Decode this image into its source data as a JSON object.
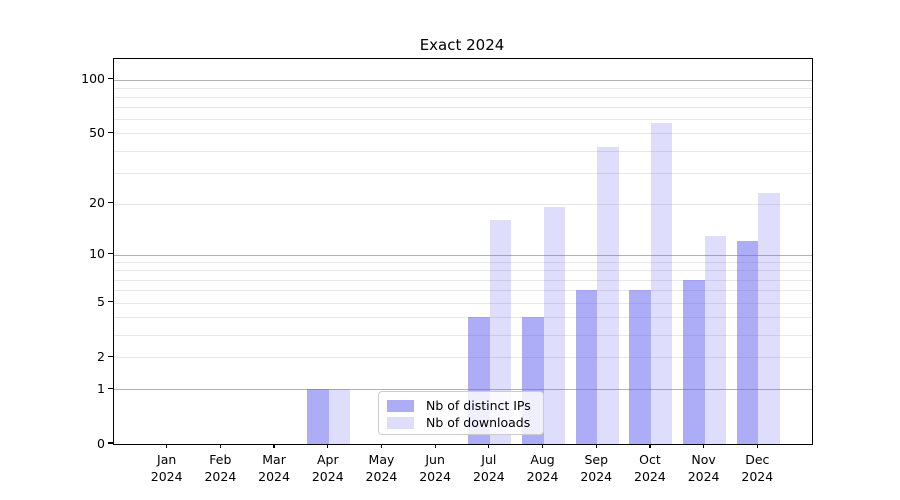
{
  "title": "Exact 2024",
  "colors": {
    "distinct_ips": "rgba(100,100,240,0.53)",
    "downloads": "rgba(100,100,240,0.21)",
    "grid_major": "#b2b2b2",
    "grid_minor": "#e7e7e7",
    "axis": "#000000"
  },
  "legend": {
    "items": [
      {
        "label": "Nb of distinct IPs",
        "series": "distinct_ips"
      },
      {
        "label": "Nb of downloads",
        "series": "downloads"
      }
    ]
  },
  "x_axis": {
    "year": "2024",
    "months": [
      "Jan",
      "Feb",
      "Mar",
      "Apr",
      "May",
      "Jun",
      "Jul",
      "Aug",
      "Sep",
      "Oct",
      "Nov",
      "Dec"
    ]
  },
  "y_axis": {
    "tick_labels": [
      "0",
      "1",
      "2",
      "5",
      "10",
      "20",
      "50",
      "100"
    ]
  },
  "chart_data": {
    "type": "bar",
    "title": "Exact 2024",
    "categories": [
      "Jan 2024",
      "Feb 2024",
      "Mar 2024",
      "Apr 2024",
      "May 2024",
      "Jun 2024",
      "Jul 2024",
      "Aug 2024",
      "Sep 2024",
      "Oct 2024",
      "Nov 2024",
      "Dec 2024"
    ],
    "series": [
      {
        "name": "Nb of distinct IPs",
        "values": [
          0,
          0,
          0,
          1,
          0,
          0,
          4,
          4,
          6,
          6,
          7,
          12
        ]
      },
      {
        "name": "Nb of downloads",
        "values": [
          0,
          0,
          0,
          1,
          0,
          0,
          16,
          19,
          42,
          57,
          13,
          23
        ]
      }
    ],
    "yscale": "log1p",
    "y_ticks": [
      0,
      1,
      2,
      5,
      10,
      20,
      50,
      100
    ],
    "y_major_gridlines": [
      1,
      10,
      100
    ],
    "y_minor_gridlines": [
      3,
      4,
      6,
      7,
      8,
      9,
      30,
      40,
      60,
      70,
      80,
      90
    ],
    "ylim": [
      0,
      130
    ],
    "xlim_slots": 13,
    "grid": true,
    "legend_position": "lower center"
  }
}
